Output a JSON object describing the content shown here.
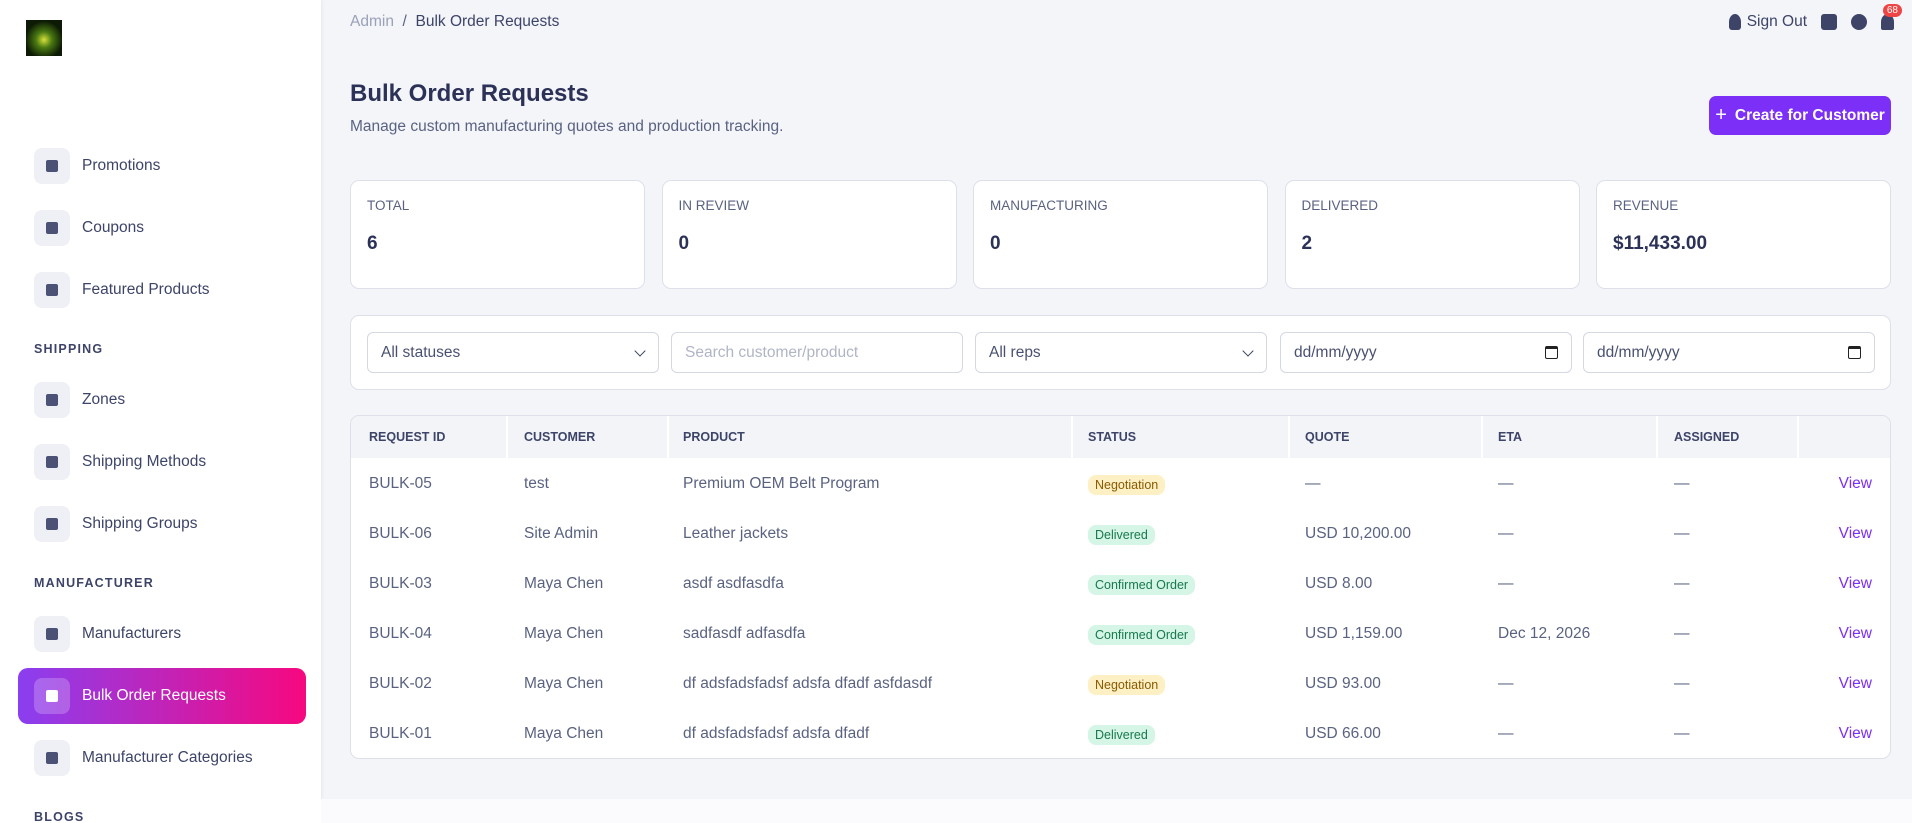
{
  "sidebar": {
    "items": [
      {
        "label": "Promotions"
      },
      {
        "label": "Coupons"
      },
      {
        "label": "Featured Products"
      },
      {
        "section": "SHIPPING"
      },
      {
        "label": "Zones"
      },
      {
        "label": "Shipping Methods"
      },
      {
        "label": "Shipping Groups"
      },
      {
        "section": "MANUFACTURER"
      },
      {
        "label": "Manufacturers"
      },
      {
        "label": "Bulk Order Requests",
        "active": true
      },
      {
        "label": "Manufacturer Categories"
      },
      {
        "section": "BLOGS"
      }
    ]
  },
  "breadcrumb": [
    "Admin",
    "Bulk Order Requests"
  ],
  "topbar": {
    "sign_out": "Sign Out",
    "notification_count": "68"
  },
  "header": {
    "title": "Bulk Order Requests",
    "subtitle": "Manage custom manufacturing quotes and production tracking.",
    "button": "Create for Customer"
  },
  "stats": [
    {
      "label": "TOTAL",
      "value": "6"
    },
    {
      "label": "IN REVIEW",
      "value": "0"
    },
    {
      "label": "MANUFACTURING",
      "value": "0"
    },
    {
      "label": "DELIVERED",
      "value": "2"
    },
    {
      "label": "REVENUE",
      "value": "$11,433.00"
    }
  ],
  "filters": {
    "status": "All statuses",
    "search_placeholder": "Search customer/product",
    "reps": "All reps",
    "date_from": "dd/mm/yyyy",
    "date_to": "dd/mm/yyyy"
  },
  "table": {
    "columns": [
      "REQUEST ID",
      "CUSTOMER",
      "PRODUCT",
      "STATUS",
      "QUOTE",
      "ETA",
      "ASSIGNED"
    ],
    "rows": [
      {
        "id": "BULK-05",
        "customer": "test",
        "product": "Premium OEM Belt Program",
        "status": "Negotiation",
        "status_bg": "#fdf0c4",
        "status_fg": "#8a5a00",
        "quote": "—",
        "eta": "—",
        "assigned": "—",
        "action": "View"
      },
      {
        "id": "BULK-06",
        "customer": "Site Admin",
        "product": "Leather jackets",
        "status": "Delivered",
        "status_bg": "#d5f5e6",
        "status_fg": "#18794e",
        "quote": "USD 10,200.00",
        "eta": "—",
        "assigned": "—",
        "action": "View"
      },
      {
        "id": "BULK-03",
        "customer": "Maya Chen",
        "product": "asdf asdfasdfa",
        "status": "Confirmed Order",
        "status_bg": "#d5f5e6",
        "status_fg": "#18794e",
        "quote": "USD 8.00",
        "eta": "—",
        "assigned": "—",
        "action": "View"
      },
      {
        "id": "BULK-04",
        "customer": "Maya Chen",
        "product": "sadfasdf adfasdfa",
        "status": "Confirmed Order",
        "status_bg": "#d5f5e6",
        "status_fg": "#18794e",
        "quote": "USD 1,159.00",
        "eta": "Dec 12, 2026",
        "assigned": "—",
        "action": "View"
      },
      {
        "id": "BULK-02",
        "customer": "Maya Chen",
        "product": "df adsfadsfadsf adsfa dfadf asfdasdf",
        "status": "Negotiation",
        "status_bg": "#fdf0c4",
        "status_fg": "#8a5a00",
        "quote": "USD 93.00",
        "eta": "—",
        "assigned": "—",
        "action": "View"
      },
      {
        "id": "BULK-01",
        "customer": "Maya Chen",
        "product": "df adsfadsfadsf adsfa dfadf",
        "status": "Delivered",
        "status_bg": "#d5f5e6",
        "status_fg": "#18794e",
        "quote": "USD 66.00",
        "eta": "—",
        "assigned": "—",
        "action": "View"
      }
    ]
  }
}
